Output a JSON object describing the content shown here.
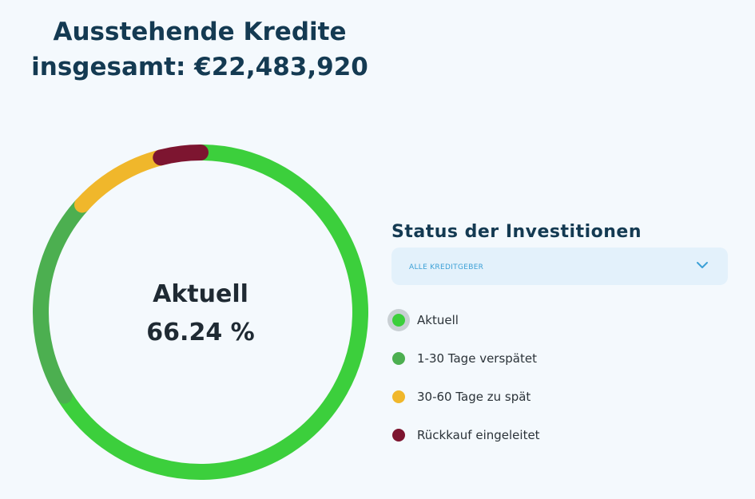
{
  "header": {
    "title_line1": "Ausstehende Kredite",
    "title_line2": "insgesamt: €22,483,920"
  },
  "center": {
    "label": "Aktuell",
    "value": "66.24 %"
  },
  "status": {
    "title": "Status der Investitionen",
    "dropdown_value": "ALLE KREDITGEBER"
  },
  "colors": {
    "aktuell": "#3ccf3c",
    "verspaetet_1_30": "#4caf50",
    "verspaetet_30_60": "#f0b72b",
    "rueckkauf": "#7d1530"
  },
  "chart_data": {
    "type": "pie",
    "title": "Ausstehende Kredite insgesamt: €22,483,920",
    "series": [
      {
        "name": "Aktuell",
        "value": 66.24,
        "color": "#3ccf3c"
      },
      {
        "name": "1-30 Tage verspätet",
        "value": 20.5,
        "color": "#4caf50"
      },
      {
        "name": "30-60 Tage zu spät",
        "value": 9.26,
        "color": "#f0b72b"
      },
      {
        "name": "Rückkauf eingeleitet",
        "value": 4.0,
        "color": "#7d1530"
      }
    ],
    "legend": {
      "position": "right",
      "entries": [
        "Aktuell",
        "1-30 Tage verspätet",
        "30-60 Tage zu spät",
        "Rückkauf eingeleitet"
      ]
    }
  }
}
